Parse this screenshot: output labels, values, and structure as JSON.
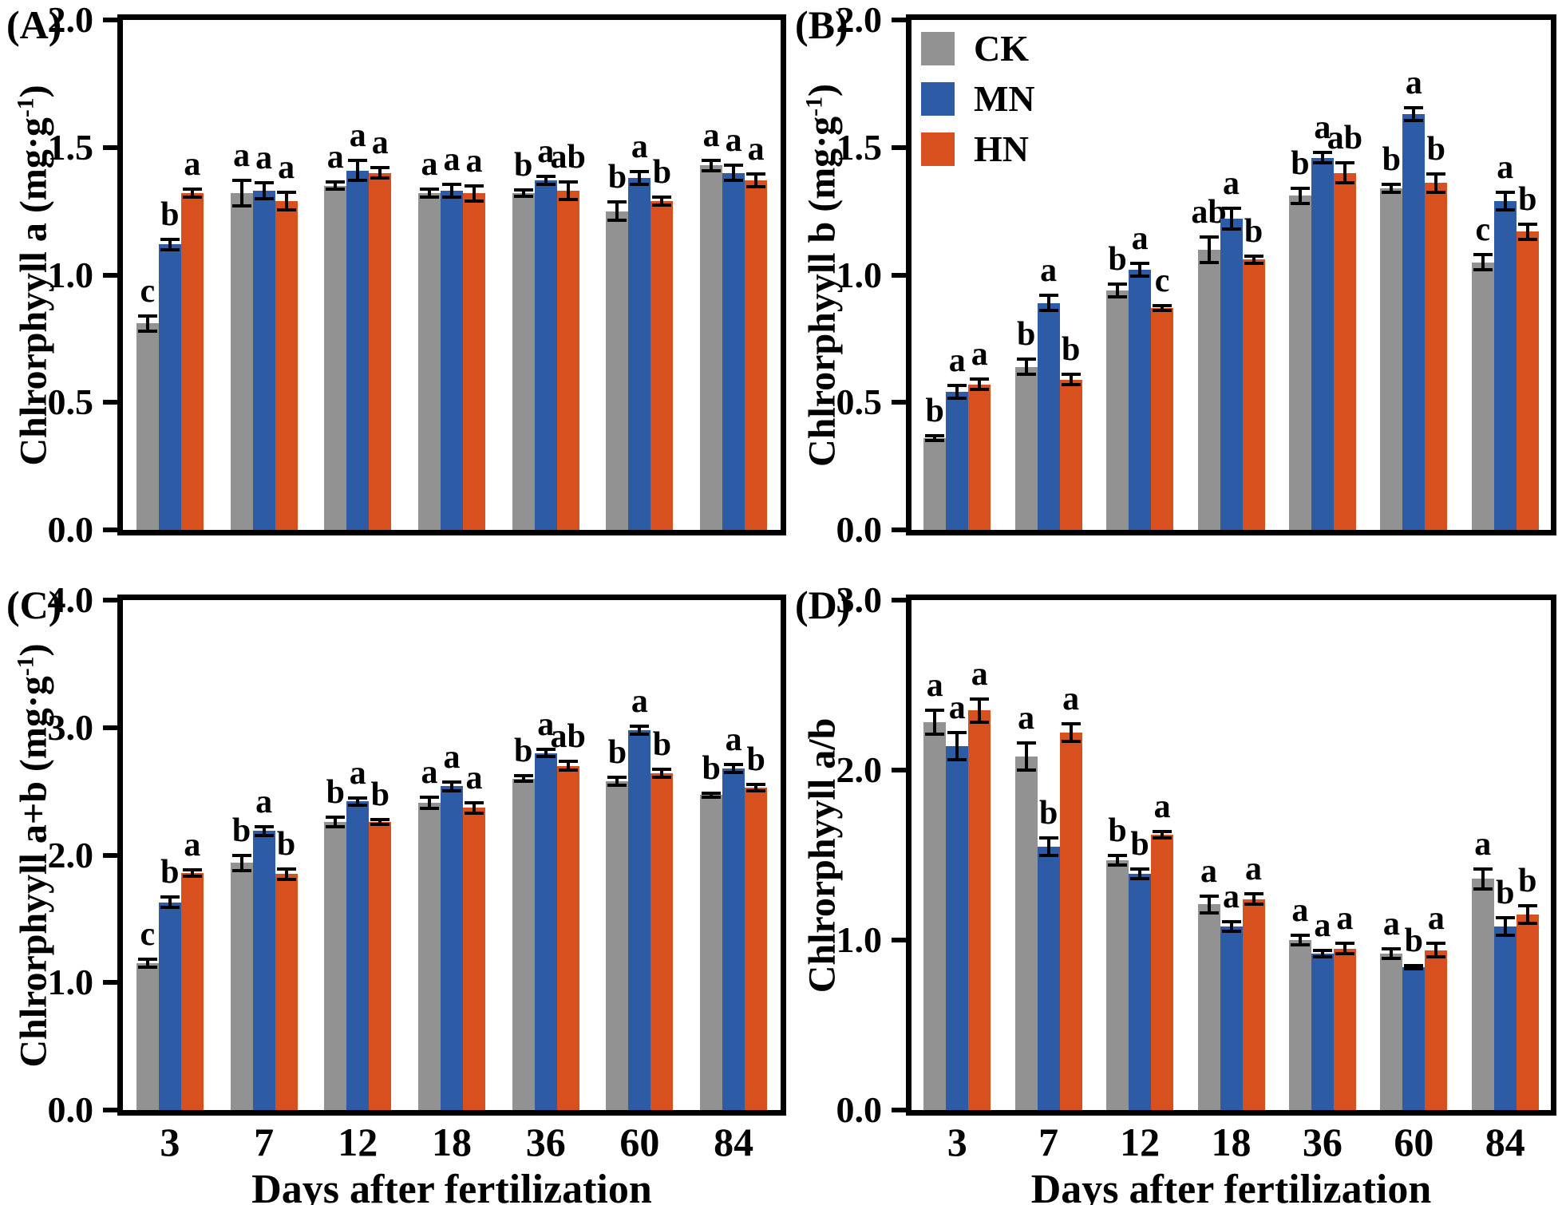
{
  "page": {
    "background": "#ffffff"
  },
  "legend": {
    "items": [
      {
        "label": "CK",
        "color": "#929292"
      },
      {
        "label": "MN",
        "color": "#2e5ba6"
      },
      {
        "label": "HN",
        "color": "#d7501e"
      }
    ]
  },
  "x_axis": {
    "title": "Days after fertilization",
    "categories": [
      "3",
      "7",
      "12",
      "18",
      "36",
      "60",
      "84"
    ]
  },
  "chart_data": [
    {
      "type": "bar",
      "id": "A",
      "label": "(A)",
      "ylabel": {
        "prefix": "Chlrorphyyll a (mg·g",
        "sup": "-1",
        "suffix": ")"
      },
      "ylim": [
        0,
        2.0
      ],
      "grid": false,
      "yticks": [
        {
          "value": 0.0,
          "label": "0.0"
        },
        {
          "value": 0.5,
          "label": "0.5"
        },
        {
          "value": 1.0,
          "label": "1.0"
        },
        {
          "value": 1.5,
          "label": "1.5"
        },
        {
          "value": 2.0,
          "label": "2.0"
        }
      ],
      "series": [
        {
          "name": "CK",
          "color": "#929292",
          "values": [
            0.81,
            1.32,
            1.35,
            1.32,
            1.32,
            1.25,
            1.43
          ],
          "errors": [
            0.03,
            0.05,
            0.015,
            0.015,
            0.012,
            0.035,
            0.02
          ],
          "letters": [
            "c",
            "a",
            "a",
            "a",
            "b",
            "b",
            "a"
          ]
        },
        {
          "name": "MN",
          "color": "#2e5ba6",
          "values": [
            1.12,
            1.33,
            1.41,
            1.33,
            1.37,
            1.38,
            1.4
          ],
          "errors": [
            0.02,
            0.03,
            0.04,
            0.025,
            0.015,
            0.025,
            0.03
          ],
          "letters": [
            "b",
            "a",
            "a",
            "a",
            "a",
            "a",
            "a"
          ]
        },
        {
          "name": "HN",
          "color": "#d7501e",
          "values": [
            1.32,
            1.29,
            1.4,
            1.32,
            1.33,
            1.29,
            1.37
          ],
          "errors": [
            0.015,
            0.035,
            0.02,
            0.03,
            0.035,
            0.015,
            0.025
          ],
          "letters": [
            "a",
            "a",
            "a",
            "a",
            "ab",
            "b",
            "a"
          ]
        }
      ]
    },
    {
      "type": "bar",
      "id": "B",
      "label": "(B)",
      "ylabel": {
        "prefix": "Chlrorphyyll b (mg·g",
        "sup": "-1",
        "suffix": ")"
      },
      "ylim": [
        0,
        2.0
      ],
      "grid": false,
      "legend_position": "upper-left",
      "yticks": [
        {
          "value": 0.0,
          "label": "0.0"
        },
        {
          "value": 0.5,
          "label": "0.5"
        },
        {
          "value": 1.0,
          "label": "1.0"
        },
        {
          "value": 1.5,
          "label": "1.5"
        },
        {
          "value": 2.0,
          "label": "2.0"
        }
      ],
      "series": [
        {
          "name": "CK",
          "color": "#929292",
          "values": [
            0.36,
            0.64,
            0.94,
            1.1,
            1.31,
            1.34,
            1.05
          ],
          "errors": [
            0.01,
            0.03,
            0.025,
            0.05,
            0.03,
            0.015,
            0.03
          ],
          "letters": [
            "b",
            "b",
            "b",
            "ab",
            "b",
            "b",
            "c"
          ]
        },
        {
          "name": "MN",
          "color": "#2e5ba6",
          "values": [
            0.54,
            0.89,
            1.02,
            1.22,
            1.46,
            1.63,
            1.29
          ],
          "errors": [
            0.025,
            0.03,
            0.025,
            0.04,
            0.02,
            0.025,
            0.035
          ],
          "letters": [
            "a",
            "a",
            "a",
            "a",
            "a",
            "a",
            "a"
          ]
        },
        {
          "name": "HN",
          "color": "#d7501e",
          "values": [
            0.57,
            0.59,
            0.87,
            1.06,
            1.4,
            1.36,
            1.17
          ],
          "errors": [
            0.02,
            0.02,
            0.01,
            0.015,
            0.04,
            0.035,
            0.03
          ],
          "letters": [
            "a",
            "b",
            "c",
            "b",
            "ab",
            "b",
            "b"
          ]
        }
      ]
    },
    {
      "type": "bar",
      "id": "C",
      "label": "(C)",
      "ylabel": {
        "prefix": "Chlrorphyyll a+b (mg·g",
        "sup": "-1",
        "suffix": ")"
      },
      "ylim": [
        0,
        4.0
      ],
      "grid": false,
      "yticks": [
        {
          "value": 0.0,
          "label": "0.0"
        },
        {
          "value": 1.0,
          "label": "1.0"
        },
        {
          "value": 2.0,
          "label": "2.0"
        },
        {
          "value": 3.0,
          "label": "3.0"
        },
        {
          "value": 4.0,
          "label": "4.0"
        }
      ],
      "series": [
        {
          "name": "CK",
          "color": "#929292",
          "values": [
            1.15,
            1.94,
            2.26,
            2.41,
            2.6,
            2.58,
            2.47
          ],
          "errors": [
            0.03,
            0.06,
            0.035,
            0.045,
            0.02,
            0.03,
            0.015
          ],
          "letters": [
            "c",
            "b",
            "b",
            "a",
            "b",
            "b",
            "b"
          ]
        },
        {
          "name": "MN",
          "color": "#2e5ba6",
          "values": [
            1.63,
            2.19,
            2.42,
            2.54,
            2.8,
            2.98,
            2.68
          ],
          "errors": [
            0.04,
            0.035,
            0.03,
            0.035,
            0.03,
            0.03,
            0.03
          ],
          "letters": [
            "b",
            "a",
            "a",
            "a",
            "a",
            "a",
            "a"
          ]
        },
        {
          "name": "HN",
          "color": "#d7501e",
          "values": [
            1.86,
            1.85,
            2.26,
            2.37,
            2.7,
            2.64,
            2.53
          ],
          "errors": [
            0.025,
            0.04,
            0.02,
            0.04,
            0.035,
            0.03,
            0.025
          ],
          "letters": [
            "a",
            "b",
            "b",
            "a",
            "ab",
            "b",
            "b"
          ]
        }
      ]
    },
    {
      "type": "bar",
      "id": "D",
      "label": "(D)",
      "ylabel": {
        "prefix": "Chlrorphyyll a/b",
        "sup": "",
        "suffix": ""
      },
      "ylim": [
        0,
        3.0
      ],
      "grid": false,
      "yticks": [
        {
          "value": 0.0,
          "label": "0.0"
        },
        {
          "value": 1.0,
          "label": "1.0"
        },
        {
          "value": 2.0,
          "label": "2.0"
        },
        {
          "value": 3.0,
          "label": "3.0"
        }
      ],
      "series": [
        {
          "name": "CK",
          "color": "#929292",
          "values": [
            2.28,
            2.08,
            1.47,
            1.21,
            1.0,
            0.92,
            1.36
          ],
          "errors": [
            0.07,
            0.08,
            0.03,
            0.05,
            0.03,
            0.03,
            0.06
          ],
          "letters": [
            "a",
            "a",
            "b",
            "a",
            "a",
            "a",
            "a"
          ]
        },
        {
          "name": "MN",
          "color": "#2e5ba6",
          "values": [
            2.14,
            1.55,
            1.39,
            1.08,
            0.92,
            0.84,
            1.08
          ],
          "errors": [
            0.08,
            0.05,
            0.03,
            0.03,
            0.02,
            0.01,
            0.05
          ],
          "letters": [
            "a",
            "b",
            "b",
            "a",
            "a",
            "b",
            "b"
          ]
        },
        {
          "name": "HN",
          "color": "#d7501e",
          "values": [
            2.35,
            2.22,
            1.62,
            1.24,
            0.95,
            0.94,
            1.15
          ],
          "errors": [
            0.07,
            0.05,
            0.02,
            0.03,
            0.03,
            0.04,
            0.05
          ],
          "letters": [
            "a",
            "a",
            "a",
            "a",
            "a",
            "a",
            "b"
          ]
        }
      ]
    }
  ]
}
